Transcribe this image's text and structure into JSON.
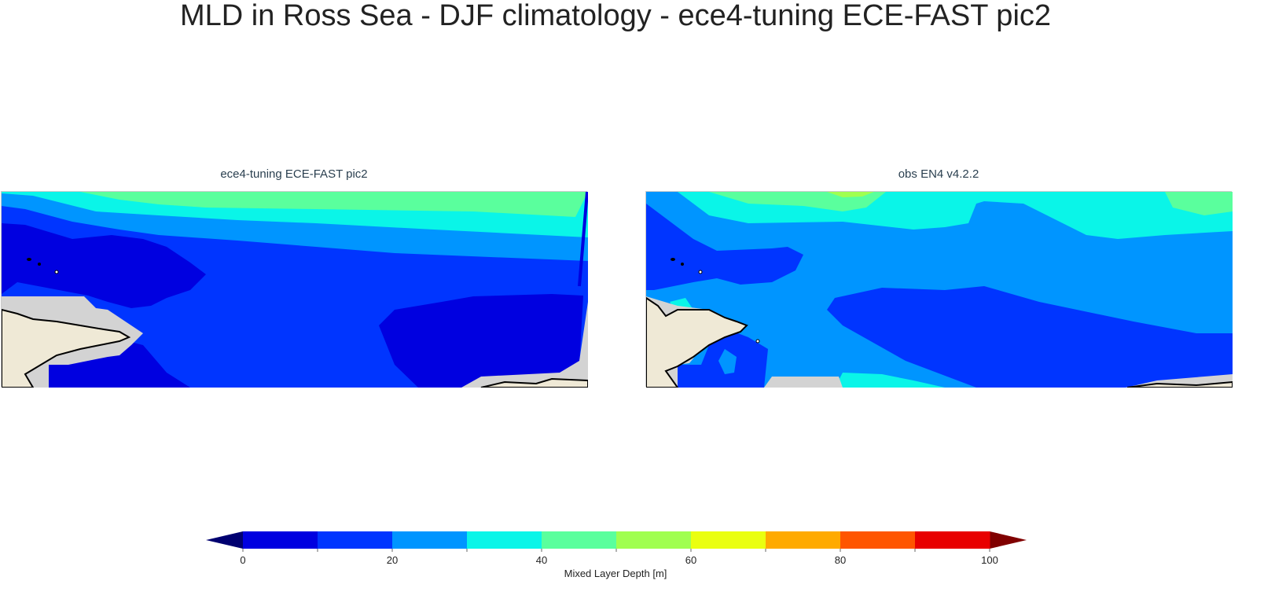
{
  "title": "MLD in Ross Sea - DJF climatology - ece4-tuning ECE-FAST pic2",
  "panels": [
    {
      "title": "ece4-tuning ECE-FAST pic2"
    },
    {
      "title": "obs EN4 v4.2.2"
    }
  ],
  "colorbar": {
    "label": "Mixed Layer Depth [m]",
    "levels": [
      0,
      10,
      20,
      30,
      40,
      50,
      60,
      70,
      80,
      90,
      100
    ],
    "tick_labels": [
      "0",
      "20",
      "40",
      "60",
      "80",
      "100"
    ],
    "colors": [
      "#0000e0",
      "#0035ff",
      "#0095ff",
      "#0af5e8",
      "#5aff9d",
      "#a0ff50",
      "#eaff10",
      "#ffaa00",
      "#ff5500",
      "#e80000"
    ],
    "under_color": "#000070",
    "over_color": "#800000",
    "extend": "both"
  },
  "colors": {
    "land": "#efe9d6",
    "masked": "#d3d3d3",
    "coastline": "#000000"
  }
}
